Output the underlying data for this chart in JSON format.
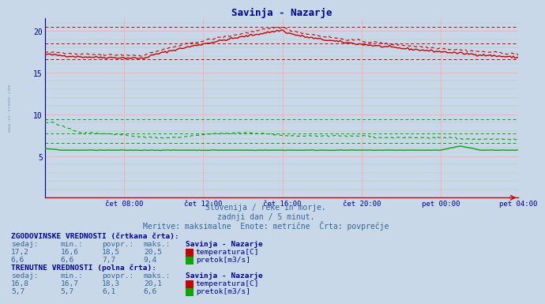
{
  "title": "Savinja - Nazarje",
  "title_color": "#000099",
  "bg_color": "#c8d8e8",
  "plot_bg_color": "#c8d8e8",
  "subtitle1": "Slovenija / reke in morje.",
  "subtitle2": "zadnji dan / 5 minut.",
  "subtitle3": "Meritve: maksimalne  Enote: metrične  Črta: povprečje",
  "watermark": "www.si-vreme.com",
  "xlabel_ticks": [
    "čet 08:00",
    "čet 12:00",
    "čet 16:00",
    "čet 20:00",
    "pet 00:00",
    "pet 04:00"
  ],
  "yticks": [
    5,
    10,
    15,
    20
  ],
  "ylim": [
    0,
    21.5
  ],
  "xlim": [
    0,
    287
  ],
  "legend_section1": "ZGODOVINSKE VREDNOSTI (črtkana črta):",
  "legend_section2": "TRENUTNE VREDNOSTI (polna črta):",
  "legend_headers": [
    "sedaj:",
    "min.:",
    "povpr.:",
    "maks.:"
  ],
  "legend_station": "Savinja - Nazarje",
  "hist_temp_sedaj": 17.2,
  "hist_temp_min": 16.6,
  "hist_temp_povpr": 18.5,
  "hist_temp_maks": 20.5,
  "hist_pretok_sedaj": 6.6,
  "hist_pretok_min": 6.6,
  "hist_pretok_povpr": 7.7,
  "hist_pretok_maks": 9.4,
  "curr_temp_sedaj": 16.8,
  "curr_temp_min": 16.7,
  "curr_temp_povpr": 18.3,
  "curr_temp_maks": 20.1,
  "curr_pretok_sedaj": 5.7,
  "curr_pretok_min": 5.7,
  "curr_pretok_povpr": 6.1,
  "curr_pretok_maks": 6.6,
  "temp_color": "#cc0000",
  "pretok_color": "#00aa00",
  "grid_pink": "#ffaaaa",
  "grid_green": "#aaccaa",
  "tick_color": "#000099",
  "text_color": "#336699",
  "label_color": "#000099",
  "n_points": 288
}
